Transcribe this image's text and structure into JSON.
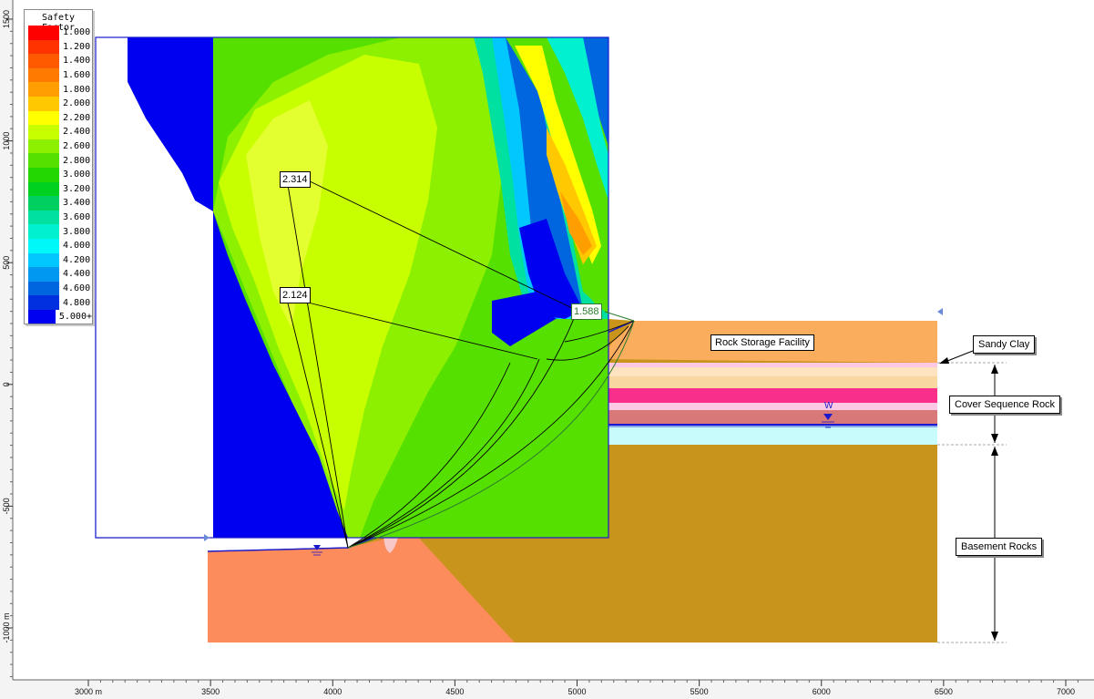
{
  "legend": {
    "title": "Safety Factor",
    "items": [
      {
        "label": "1.000",
        "color": "#ff0000"
      },
      {
        "label": "1.200",
        "color": "#ff3300"
      },
      {
        "label": "1.400",
        "color": "#ff5a00"
      },
      {
        "label": "1.600",
        "color": "#ff7a00"
      },
      {
        "label": "1.800",
        "color": "#ff9e00"
      },
      {
        "label": "2.000",
        "color": "#ffc800"
      },
      {
        "label": "2.200",
        "color": "#ffff00"
      },
      {
        "label": "2.400",
        "color": "#c8ff00"
      },
      {
        "label": "2.600",
        "color": "#8cf000"
      },
      {
        "label": "2.800",
        "color": "#55e000"
      },
      {
        "label": "3.000",
        "color": "#22d800"
      },
      {
        "label": "3.200",
        "color": "#00d020"
      },
      {
        "label": "3.400",
        "color": "#00d060"
      },
      {
        "label": "3.600",
        "color": "#00e0a0"
      },
      {
        "label": "3.800",
        "color": "#00f0d0"
      },
      {
        "label": "4.000",
        "color": "#00f8f8"
      },
      {
        "label": "4.200",
        "color": "#00c8ff"
      },
      {
        "label": "4.400",
        "color": "#0098f0"
      },
      {
        "label": "4.600",
        "color": "#0066e0"
      },
      {
        "label": "4.800",
        "color": "#0030e0"
      },
      {
        "label": "5.000+",
        "color": "#0000f0"
      }
    ]
  },
  "rulers": {
    "x_ticks": [
      {
        "label": "3000 m",
        "value": 3000
      },
      {
        "label": "3500",
        "value": 3500
      },
      {
        "label": "4000",
        "value": 4000
      },
      {
        "label": "4500",
        "value": 4500
      },
      {
        "label": "5000",
        "value": 5000
      },
      {
        "label": "5500",
        "value": 5500
      },
      {
        "label": "6000",
        "value": 6000
      },
      {
        "label": "6500",
        "value": 6500
      },
      {
        "label": "7000",
        "value": 7000
      }
    ],
    "y_ticks": [
      {
        "label": "1500",
        "value": 1500
      },
      {
        "label": "1000",
        "value": 1000
      },
      {
        "label": "500",
        "value": 500
      },
      {
        "label": "0",
        "value": 0
      },
      {
        "label": "-500",
        "value": -500
      },
      {
        "label": "-1000 m",
        "value": -1000
      }
    ]
  },
  "safety_factor_labels": [
    {
      "value": "2.314",
      "critical": false
    },
    {
      "value": "2.124",
      "critical": false
    },
    {
      "value": "1.588",
      "critical": true
    }
  ],
  "material_labels": {
    "rock_storage": "Rock Storage Facility",
    "sandy_clay": "Sandy Clay",
    "cover_sequence": "Cover Sequence Rock",
    "basement": "Basement Rocks"
  },
  "water_table_label": "W",
  "colors": {
    "rock_storage": "#fbad5e",
    "basement": "#c8941c",
    "basement_left": "#fd8c5c",
    "cover_pink_light": "#fcc8e4",
    "cover_tan": "#f8d8a0",
    "cover_magenta": "#f8308c",
    "cover_rose": "#d87878",
    "cover_cyan": "#c8fcfc",
    "boundary_blue": "#1a1acc"
  }
}
